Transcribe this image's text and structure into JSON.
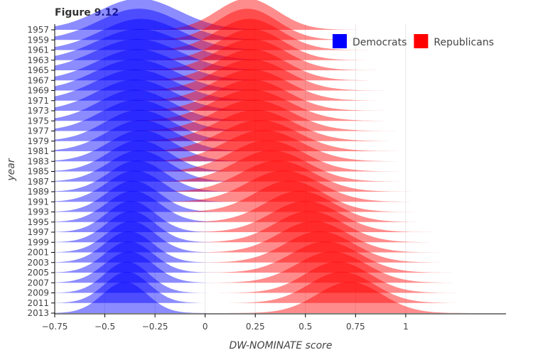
{
  "chart_data": {
    "type": "ridgeline",
    "title": "Figure 9.12",
    "xlabel": "DW-NOMINATE score",
    "ylabel": "year",
    "xlim": [
      -0.75,
      1.5
    ],
    "x_ticks": [
      "−0.75",
      "−0.5",
      "−0.25",
      "0",
      "0.25",
      "0.5",
      "0.75",
      "1"
    ],
    "x_tick_values": [
      -0.75,
      -0.5,
      -0.25,
      0,
      0.25,
      0.5,
      0.75,
      1
    ],
    "years": [
      "1957",
      "1959",
      "1961",
      "1963",
      "1965",
      "1967",
      "1969",
      "1971",
      "1973",
      "1975",
      "1977",
      "1979",
      "1981",
      "1983",
      "1985",
      "1987",
      "1989",
      "1991",
      "1993",
      "1995",
      "1997",
      "1999",
      "2001",
      "2003",
      "2005",
      "2007",
      "2009",
      "2011",
      "2013"
    ],
    "grid": true,
    "legend_position": "top-right",
    "series": [
      {
        "name": "Democrats",
        "color": "#0000ff",
        "modes": [
          -0.33,
          -0.33,
          -0.32,
          -0.33,
          -0.34,
          -0.34,
          -0.35,
          -0.35,
          -0.35,
          -0.35,
          -0.34,
          -0.33,
          -0.32,
          -0.32,
          -0.33,
          -0.33,
          -0.34,
          -0.35,
          -0.36,
          -0.36,
          -0.37,
          -0.37,
          -0.37,
          -0.38,
          -0.38,
          -0.38,
          -0.39,
          -0.39,
          -0.4
        ],
        "spread": [
          0.2,
          0.2,
          0.2,
          0.21,
          0.21,
          0.2,
          0.2,
          0.2,
          0.19,
          0.18,
          0.18,
          0.17,
          0.17,
          0.16,
          0.15,
          0.15,
          0.14,
          0.14,
          0.13,
          0.13,
          0.12,
          0.12,
          0.12,
          0.12,
          0.12,
          0.12,
          0.11,
          0.11,
          0.11
        ]
      },
      {
        "name": "Republicans",
        "color": "#ff0000",
        "modes": [
          0.21,
          0.21,
          0.22,
          0.23,
          0.23,
          0.23,
          0.23,
          0.23,
          0.23,
          0.23,
          0.24,
          0.25,
          0.27,
          0.29,
          0.31,
          0.33,
          0.36,
          0.39,
          0.42,
          0.47,
          0.5,
          0.52,
          0.54,
          0.57,
          0.6,
          0.63,
          0.66,
          0.68,
          0.72
        ],
        "spread": [
          0.15,
          0.15,
          0.16,
          0.16,
          0.17,
          0.17,
          0.18,
          0.18,
          0.18,
          0.19,
          0.19,
          0.19,
          0.19,
          0.19,
          0.18,
          0.18,
          0.18,
          0.18,
          0.17,
          0.17,
          0.17,
          0.17,
          0.17,
          0.17,
          0.17,
          0.17,
          0.16,
          0.16,
          0.16
        ]
      }
    ]
  }
}
